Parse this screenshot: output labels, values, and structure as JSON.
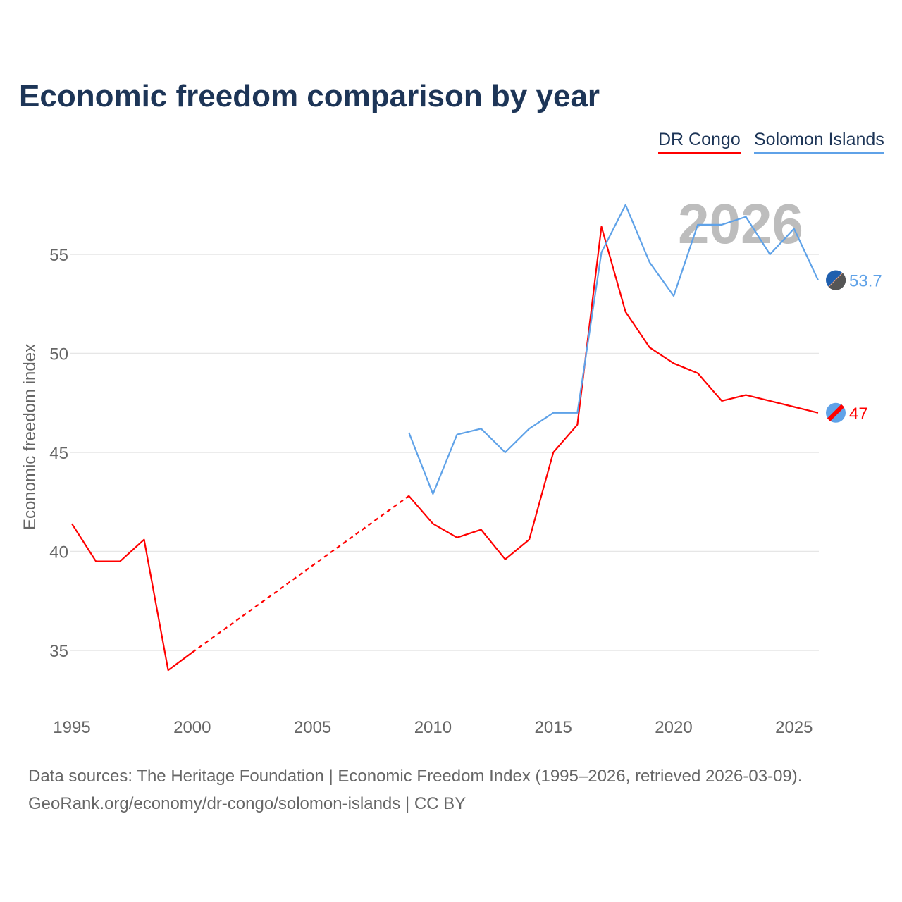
{
  "chart_data": {
    "type": "line",
    "title": "Economic freedom comparison by year",
    "ylabel": "Economic freedom index",
    "xlabel": "",
    "xlim": [
      1995,
      2026
    ],
    "ylim": [
      32.5,
      58.5
    ],
    "yticks": [
      35,
      40,
      45,
      50,
      55
    ],
    "xticks": [
      1995,
      2000,
      2005,
      2010,
      2015,
      2020,
      2025
    ],
    "grid": true,
    "legend_position": "top-right",
    "year_watermark": "2026",
    "series": [
      {
        "name": "DR Congo",
        "color": "#ff0000",
        "end_label": "47",
        "points": [
          [
            1995,
            41.4
          ],
          [
            1996,
            39.5
          ],
          [
            1997,
            39.5
          ],
          [
            1998,
            40.6
          ],
          [
            1999,
            34.0
          ],
          [
            2000,
            34.9
          ],
          [
            2009,
            42.8
          ],
          [
            2010,
            41.4
          ],
          [
            2011,
            40.7
          ],
          [
            2012,
            41.1
          ],
          [
            2013,
            39.6
          ],
          [
            2014,
            40.6
          ],
          [
            2015,
            45.0
          ],
          [
            2016,
            46.4
          ],
          [
            2017,
            56.4
          ],
          [
            2018,
            52.1
          ],
          [
            2019,
            50.3
          ],
          [
            2020,
            49.5
          ],
          [
            2021,
            49.0
          ],
          [
            2022,
            47.6
          ],
          [
            2023,
            47.9
          ],
          [
            2024,
            47.6
          ],
          [
            2025,
            47.3
          ],
          [
            2026,
            47.0
          ]
        ],
        "gaps_dashed": [
          [
            2000,
            2009
          ]
        ]
      },
      {
        "name": "Solomon Islands",
        "color": "#5fa2e8",
        "end_label": "53.7",
        "points": [
          [
            2009,
            46.0
          ],
          [
            2010,
            42.9
          ],
          [
            2011,
            45.9
          ],
          [
            2012,
            46.2
          ],
          [
            2013,
            45.0
          ],
          [
            2014,
            46.2
          ],
          [
            2015,
            47.0
          ],
          [
            2016,
            47.0
          ],
          [
            2017,
            55.1
          ],
          [
            2018,
            57.5
          ],
          [
            2019,
            54.6
          ],
          [
            2020,
            52.9
          ],
          [
            2021,
            56.5
          ],
          [
            2022,
            56.5
          ],
          [
            2023,
            56.9
          ],
          [
            2024,
            55.0
          ],
          [
            2025,
            56.3
          ],
          [
            2026,
            53.7
          ]
        ]
      }
    ]
  },
  "footer": {
    "line1": "Data sources: The Heritage Foundation | Economic Freedom Index (1995–2026, retrieved 2026-03-09).",
    "line2": "GeoRank.org/economy/dr-congo/solomon-islands | CC BY"
  }
}
